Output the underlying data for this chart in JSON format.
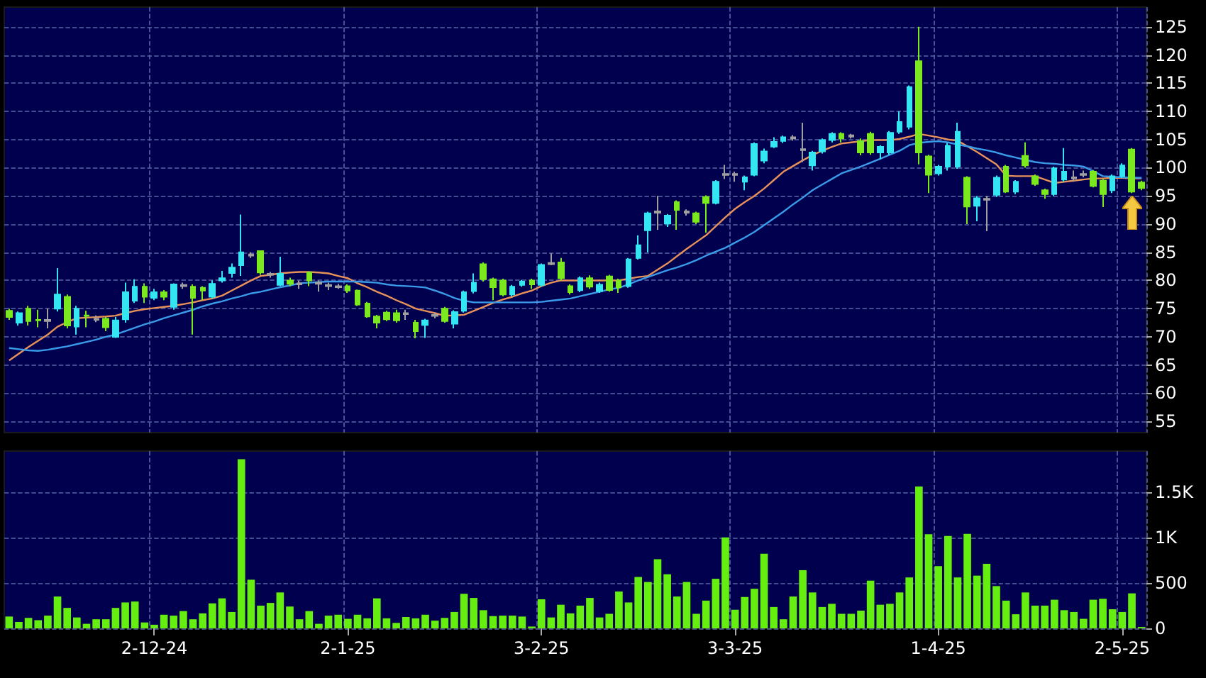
{
  "chart_data": [
    {
      "type": "candlestick",
      "categories": [
        null,
        null,
        null,
        null,
        null,
        null,
        null,
        null,
        null,
        null,
        null,
        null,
        null,
        null,
        null,
        null,
        null,
        null,
        null,
        null,
        null,
        null,
        null,
        null,
        null,
        null,
        null,
        null,
        null,
        null,
        null,
        null,
        null,
        null,
        null,
        null,
        null,
        null,
        null,
        null,
        null,
        null,
        null,
        null,
        null,
        null,
        null,
        null,
        null,
        null,
        null,
        null,
        null,
        null,
        null,
        null,
        null,
        null,
        null,
        null,
        null,
        null,
        null,
        null,
        null,
        null,
        null,
        null,
        null,
        null,
        null,
        null,
        null,
        null,
        null,
        null,
        null,
        null,
        null,
        null,
        null,
        null,
        null,
        null,
        null,
        null,
        null,
        null,
        null,
        null,
        null,
        null,
        null,
        null,
        null,
        null,
        null,
        null,
        null,
        null,
        null,
        null,
        null,
        null,
        null,
        null,
        null,
        null,
        null,
        null,
        null,
        null,
        null,
        null,
        null,
        null,
        null,
        null
      ],
      "ohlc": [
        [
          74.6,
          75,
          73,
          73.5
        ],
        [
          72.5,
          74.5,
          72,
          74.2
        ],
        [
          75,
          75.5,
          72,
          72.8
        ],
        [
          73,
          74.8,
          71.7,
          72.9
        ],
        [
          73,
          75,
          71.5,
          72.8
        ],
        [
          75,
          82.2,
          74.5,
          77.5
        ],
        [
          77.1,
          77.5,
          71.5,
          72
        ],
        [
          71.8,
          75.5,
          70.4,
          75
        ],
        [
          73.8,
          74.6,
          71.7,
          73.7
        ],
        [
          73.2,
          73.8,
          72.6,
          73
        ],
        [
          73.2,
          73.5,
          71,
          71.7
        ],
        [
          70,
          73.5,
          69.8,
          72.9
        ],
        [
          73.1,
          79.6,
          72.5,
          77.9
        ],
        [
          76.4,
          80.2,
          76,
          78.9
        ],
        [
          78.9,
          79.5,
          76,
          77.1
        ],
        [
          76.9,
          78.5,
          76.5,
          77.9
        ],
        [
          77.9,
          78.3,
          76.5,
          77.1
        ],
        [
          75.3,
          79.5,
          74.8,
          79.3
        ],
        [
          79.2,
          79.6,
          78.5,
          79
        ],
        [
          78.9,
          79.3,
          70.4,
          76.9
        ],
        [
          78.7,
          79,
          76.5,
          78.2
        ],
        [
          77.1,
          80,
          76.8,
          79.4
        ],
        [
          80,
          81.7,
          79.6,
          80.4
        ],
        [
          81.3,
          83,
          80.5,
          82.3
        ],
        [
          82.7,
          91.7,
          80.8,
          85
        ],
        [
          84.6,
          85,
          84,
          84.4
        ],
        [
          85.2,
          85.3,
          81,
          81.4
        ],
        [
          81.2,
          81.5,
          80.5,
          81
        ],
        [
          79.2,
          84.2,
          79,
          81.2
        ],
        [
          80,
          80.5,
          79,
          79.4
        ],
        [
          79.5,
          80,
          78.5,
          79.3
        ],
        [
          81.4,
          81.6,
          79,
          80
        ],
        [
          79.6,
          80,
          78,
          79.4
        ],
        [
          79.2,
          79.6,
          78.3,
          79
        ],
        [
          79,
          79.4,
          78.5,
          78.8
        ],
        [
          79,
          79.3,
          77.8,
          78.2
        ],
        [
          78.2,
          78.4,
          75.5,
          75.7
        ],
        [
          75.9,
          76.2,
          73.4,
          73.6
        ],
        [
          73.6,
          73.9,
          71.5,
          72.5
        ],
        [
          74.3,
          74.6,
          72.8,
          73.1
        ],
        [
          74.2,
          74.8,
          72.5,
          72.9
        ],
        [
          74.2,
          74.8,
          73,
          74
        ],
        [
          72.5,
          73,
          69.75,
          71
        ],
        [
          72.1,
          73.2,
          69.8,
          72.9
        ],
        [
          73.9,
          74.3,
          73.3,
          73.7
        ],
        [
          75,
          75.3,
          72.5,
          72.8
        ],
        [
          72.3,
          74.7,
          71.5,
          74.4
        ],
        [
          74.6,
          78.2,
          74.3,
          77.9
        ],
        [
          78.1,
          81.25,
          77.7,
          79.6
        ],
        [
          82.9,
          83.2,
          79.8,
          80.2
        ],
        [
          80.2,
          80.5,
          76.5,
          78.8
        ],
        [
          80,
          80.3,
          77.2,
          77.5
        ],
        [
          77.5,
          79.2,
          77.2,
          78.9
        ],
        [
          79.2,
          80.1,
          78.9,
          79.8
        ],
        [
          80,
          80.3,
          78.5,
          79.3
        ],
        [
          79.2,
          83,
          78.9,
          82.75
        ],
        [
          83.1,
          84.8,
          82.7,
          82.9
        ],
        [
          83.2,
          84,
          80,
          80.4
        ],
        [
          79,
          79.3,
          77.5,
          77.9
        ],
        [
          78.25,
          80.7,
          77.9,
          80.4
        ],
        [
          80.4,
          80.9,
          78.5,
          78.9
        ],
        [
          78.1,
          79.6,
          77.8,
          79.25
        ],
        [
          80.7,
          81,
          78,
          78.3
        ],
        [
          80,
          80.3,
          77.8,
          78.75
        ],
        [
          79,
          84,
          78.7,
          83.75
        ],
        [
          84,
          88,
          83.7,
          86.25
        ],
        [
          88.9,
          92.2,
          85,
          91.9
        ],
        [
          92.25,
          95,
          89,
          92
        ],
        [
          90.1,
          91.8,
          89.5,
          91.5
        ],
        [
          93.9,
          94.2,
          89,
          92.5
        ],
        [
          92.25,
          92.6,
          91.5,
          92
        ],
        [
          91.9,
          92.2,
          90,
          90.4
        ],
        [
          94.8,
          95.1,
          88.5,
          93.75
        ],
        [
          93.75,
          97.8,
          93.5,
          97.5
        ],
        [
          98.9,
          100.5,
          98,
          98.7
        ],
        [
          98.9,
          99.3,
          97.5,
          98.7
        ],
        [
          97.5,
          98.6,
          96,
          98.3
        ],
        [
          98.75,
          104.5,
          98.5,
          104.2
        ],
        [
          101.25,
          103.4,
          100.8,
          102.9
        ],
        [
          103.75,
          105.4,
          103.5,
          104.6
        ],
        [
          104.75,
          105.7,
          104.4,
          105.4
        ],
        [
          105.4,
          105.8,
          104.8,
          105.2
        ],
        [
          103.3,
          108,
          101,
          103.1
        ],
        [
          100.4,
          103,
          99.5,
          102.7
        ],
        [
          102.9,
          105.2,
          102.5,
          104.9
        ],
        [
          104.9,
          106.3,
          104.5,
          106
        ],
        [
          106,
          106.3,
          104.5,
          105.2
        ],
        [
          105.75,
          106,
          105.2,
          105.5
        ],
        [
          104.75,
          105.2,
          102.2,
          102.7
        ],
        [
          106,
          106.4,
          102.3,
          102.7
        ],
        [
          102.7,
          104,
          101.5,
          103.7
        ],
        [
          102.7,
          106.5,
          102.3,
          106.2
        ],
        [
          106.4,
          110,
          106,
          108.1
        ],
        [
          107.25,
          114.6,
          106.8,
          114.3
        ],
        [
          118.9,
          125,
          100.6,
          102.7
        ],
        [
          102,
          102.3,
          95.5,
          98.75
        ],
        [
          99,
          100.5,
          98.6,
          100.2
        ],
        [
          100.2,
          104.4,
          99.5,
          103.9
        ],
        [
          100.2,
          108,
          99.8,
          106.4
        ],
        [
          98.25,
          98.5,
          90,
          93.1
        ],
        [
          93.25,
          95,
          90.5,
          94.6
        ],
        [
          94.5,
          95,
          88.75,
          94.3
        ],
        [
          95.2,
          98.6,
          94.8,
          98.25
        ],
        [
          100.2,
          100.5,
          95.5,
          95.75
        ],
        [
          95.75,
          97.8,
          95.3,
          97.5
        ],
        [
          102.1,
          104.5,
          100,
          100.4
        ],
        [
          98.5,
          98.8,
          96.8,
          97.1
        ],
        [
          96,
          96.3,
          94.5,
          95.3
        ],
        [
          95.3,
          100.2,
          95,
          99.9
        ],
        [
          97.9,
          103.5,
          97.5,
          99.3
        ],
        [
          98.3,
          99.5,
          97.5,
          98.1
        ],
        [
          98.9,
          99.5,
          98.3,
          98.7
        ],
        [
          99.3,
          99.6,
          96.5,
          96.75
        ],
        [
          97.7,
          98,
          93,
          95.3
        ],
        [
          96,
          98.8,
          95.5,
          98.5
        ],
        [
          98.5,
          100.8,
          98.2,
          100.4
        ],
        [
          103.25,
          103.5,
          95.5,
          95.75
        ],
        [
          97.4,
          97.7,
          96,
          96.4
        ]
      ],
      "colors": [
        "#7be820",
        "#33e6f2",
        "#7be820",
        "#7be820",
        "#a0a0a0",
        "#33e6f2",
        "#7be820",
        "#33e6f2",
        "#7be820",
        "#a0a0a0",
        "#7be820",
        "#33e6f2",
        "#33e6f2",
        "#33e6f2",
        "#7be820",
        "#33e6f2",
        "#7be820",
        "#33e6f2",
        "#a0a0a0",
        "#7be820",
        "#7be820",
        "#33e6f2",
        "#33e6f2",
        "#33e6f2",
        "#33e6f2",
        "#a0a0a0",
        "#7be820",
        "#a0a0a0",
        "#33e6f2",
        "#7be820",
        "#a0a0a0",
        "#7be820",
        "#a0a0a0",
        "#a0a0a0",
        "#a0a0a0",
        "#7be820",
        "#7be820",
        "#7be820",
        "#7be820",
        "#7be820",
        "#7be820",
        "#a0a0a0",
        "#7be820",
        "#33e6f2",
        "#a0a0a0",
        "#7be820",
        "#33e6f2",
        "#33e6f2",
        "#33e6f2",
        "#7be820",
        "#7be820",
        "#7be820",
        "#33e6f2",
        "#33e6f2",
        "#7be820",
        "#33e6f2",
        "#a0a0a0",
        "#7be820",
        "#7be820",
        "#33e6f2",
        "#7be820",
        "#33e6f2",
        "#7be820",
        "#7be820",
        "#33e6f2",
        "#33e6f2",
        "#33e6f2",
        "#a0a0a0",
        "#33e6f2",
        "#7be820",
        "#a0a0a0",
        "#7be820",
        "#7be820",
        "#33e6f2",
        "#a0a0a0",
        "#a0a0a0",
        "#33e6f2",
        "#33e6f2",
        "#33e6f2",
        "#33e6f2",
        "#33e6f2",
        "#a0a0a0",
        "#a0a0a0",
        "#33e6f2",
        "#33e6f2",
        "#33e6f2",
        "#7be820",
        "#a0a0a0",
        "#7be820",
        "#7be820",
        "#33e6f2",
        "#33e6f2",
        "#33e6f2",
        "#33e6f2",
        "#7be820",
        "#7be820",
        "#33e6f2",
        "#33e6f2",
        "#33e6f2",
        "#7be820",
        "#33e6f2",
        "#a0a0a0",
        "#33e6f2",
        "#7be820",
        "#33e6f2",
        "#7be820",
        "#7be820",
        "#7be820",
        "#33e6f2",
        "#33e6f2",
        "#a0a0a0",
        "#a0a0a0",
        "#7be820",
        "#7be820",
        "#33e6f2",
        "#33e6f2",
        "#7be820",
        "#7be820"
      ],
      "series": [
        {
          "type": "line",
          "color": "#e8925a",
          "values": [
            65.8,
            67,
            68.2,
            69.3,
            70.4,
            71.8,
            72.6,
            73.3,
            73.4,
            73.5,
            73.6,
            73.75,
            74.2,
            74.6,
            74.9,
            75.1,
            75.3,
            75.5,
            75.8,
            76.1,
            76.5,
            76.8,
            77.3,
            78.2,
            79.1,
            80,
            80.8,
            81,
            81.25,
            81.4,
            81.5,
            81.5,
            81.4,
            81.25,
            80.8,
            80.4,
            79.5,
            78.8,
            78,
            77.3,
            76.5,
            75.8,
            75,
            74.6,
            74.2,
            73.75,
            73.8,
            73.9,
            74.6,
            75.3,
            76,
            76.6,
            77.1,
            77.7,
            78.2,
            79,
            79.6,
            80,
            80,
            80,
            80,
            80,
            80,
            80,
            80.3,
            80.6,
            80.8,
            81.9,
            83,
            84.3,
            85.6,
            86.8,
            88,
            89.6,
            91.2,
            92.7,
            93.9,
            95,
            96.3,
            97.8,
            99.3,
            100.3,
            101.3,
            102.25,
            103,
            103.7,
            104.3,
            104.5,
            104.7,
            104.9,
            104.9,
            104.9,
            105.1,
            105.5,
            106,
            105.7,
            105.4,
            105,
            104.8,
            103.8,
            102.8,
            101.7,
            100.6,
            98.6,
            98.5,
            98.5,
            98.5,
            97.9,
            97.3,
            97.5,
            97.7,
            97.9,
            98.1,
            98.1,
            98.2,
            98.2,
            98.1,
            98.1
          ]
        },
        {
          "type": "line",
          "color": "#3a9be8",
          "values": [
            68,
            67.8,
            67.6,
            67.5,
            67.7,
            68,
            68.3,
            68.7,
            69.1,
            69.5,
            70,
            70.4,
            71,
            71.6,
            72.2,
            72.7,
            73.3,
            73.8,
            74.3,
            74.8,
            75.4,
            75.9,
            76.3,
            76.8,
            77.2,
            77.7,
            78,
            78.4,
            78.8,
            79.1,
            79.5,
            79.6,
            79.7,
            79.8,
            79.8,
            79.8,
            79.8,
            79.7,
            79.6,
            79.3,
            79.1,
            79,
            78.9,
            78.75,
            78.2,
            77.6,
            76.9,
            76.4,
            76.1,
            76.1,
            76.1,
            76.1,
            76.1,
            76.1,
            76.1,
            76.2,
            76.4,
            76.6,
            76.8,
            77.2,
            77.6,
            78,
            78.4,
            78.7,
            79.3,
            80,
            80.6,
            81.2,
            81.8,
            82.3,
            82.9,
            83.6,
            84.4,
            85.1,
            85.8,
            86.7,
            87.6,
            88.6,
            89.8,
            91,
            92.2,
            93.5,
            94.7,
            96,
            97,
            98,
            99,
            99.6,
            100.2,
            100.9,
            101.6,
            102.3,
            103,
            104,
            104.4,
            104.6,
            104.7,
            104.5,
            104.1,
            103.8,
            103.4,
            103.1,
            102.7,
            102.2,
            101.8,
            101.4,
            101,
            100.8,
            100.7,
            100.5,
            100.4,
            100.2,
            99.4,
            98.5,
            98.4,
            98.3,
            98.25,
            98.2
          ]
        }
      ],
      "line_style": "solid",
      "ylim": [
        53,
        128.5
      ],
      "yticks": [
        55,
        60,
        65,
        70,
        75,
        80,
        85,
        90,
        95,
        100,
        105,
        110,
        115,
        120,
        125
      ],
      "grid": true,
      "tick_labels": "y"
    },
    {
      "type": "bar",
      "categories": [
        null,
        null,
        null,
        null,
        null,
        null,
        null,
        null,
        null,
        null,
        null,
        null,
        null,
        null,
        null,
        "2-12-24",
        null,
        null,
        null,
        null,
        null,
        null,
        null,
        null,
        null,
        null,
        null,
        null,
        null,
        null,
        null,
        null,
        null,
        null,
        null,
        "2-1-25",
        null,
        null,
        null,
        null,
        null,
        null,
        null,
        null,
        null,
        null,
        null,
        null,
        null,
        null,
        null,
        null,
        null,
        null,
        null,
        "3-2-25",
        null,
        null,
        null,
        null,
        null,
        null,
        null,
        null,
        null,
        null,
        null,
        null,
        null,
        null,
        null,
        null,
        null,
        null,
        null,
        "3-3-25",
        null,
        null,
        null,
        null,
        null,
        null,
        null,
        null,
        null,
        null,
        null,
        null,
        null,
        null,
        null,
        null,
        null,
        null,
        null,
        null,
        "1-4-25",
        null,
        null,
        null,
        null,
        null,
        null,
        null,
        null,
        null,
        null,
        null,
        null,
        null,
        null,
        null,
        null,
        null,
        null,
        "2-5-25",
        null,
        null
      ],
      "values": [
        130,
        70,
        115,
        90,
        140,
        350,
        225,
        120,
        50,
        100,
        100,
        225,
        285,
        295,
        65,
        40,
        150,
        140,
        190,
        100,
        165,
        275,
        330,
        180,
        1860,
        535,
        250,
        280,
        395,
        240,
        100,
        190,
        50,
        140,
        150,
        105,
        150,
        110,
        330,
        110,
        60,
        125,
        110,
        150,
        85,
        115,
        180,
        380,
        335,
        200,
        135,
        140,
        140,
        130,
        20,
        320,
        120,
        260,
        165,
        250,
        335,
        120,
        160,
        405,
        285,
        565,
        510,
        760,
        595,
        350,
        510,
        160,
        305,
        545,
        1000,
        205,
        345,
        435,
        820,
        235,
        100,
        350,
        640,
        395,
        235,
        270,
        160,
        160,
        195,
        525,
        260,
        270,
        395,
        560,
        1560,
        1035,
        685,
        1015,
        560,
        1040,
        580,
        710,
        465,
        305,
        155,
        395,
        250,
        250,
        315,
        200,
        180,
        105,
        315,
        325,
        210,
        180,
        385,
        15
      ],
      "color": "#66ee11",
      "ylim": [
        0,
        1950
      ],
      "yticks": [
        0,
        500,
        {
          "value": 1000,
          "label": "1K"
        },
        {
          "value": 1500,
          "label": "1.5K"
        }
      ],
      "grid": true
    }
  ]
}
